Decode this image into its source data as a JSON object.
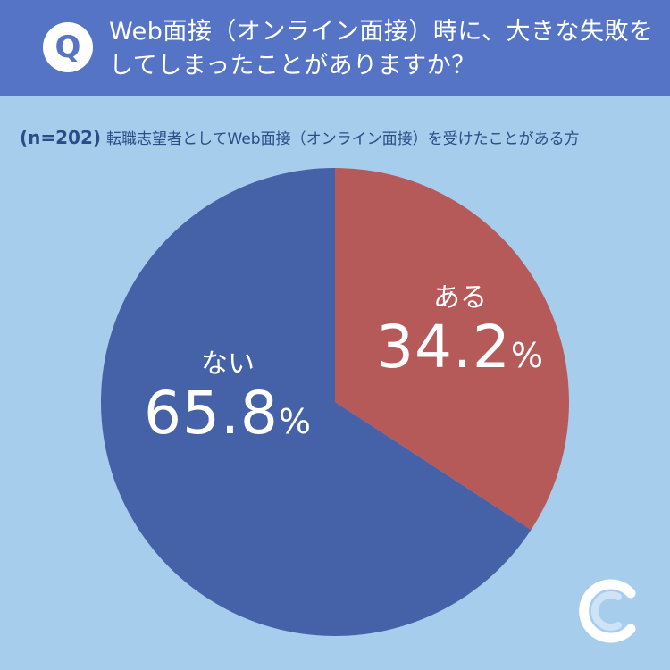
{
  "header": {
    "badge": "Q",
    "question_line1": "Web面接（オンライン面接）時に、大きな失敗を",
    "question_line2": "してしまったことがありますか？"
  },
  "subtitle": {
    "n": "(n=202)",
    "text": "転職志望者としてWeb面接（オンライン面接）を受けたことがある方"
  },
  "chart_data": {
    "type": "pie",
    "categories": [
      "ある",
      "ない"
    ],
    "values": [
      34.2,
      65.8
    ],
    "unit": "%",
    "colors": [
      "#b65a59",
      "#4561a7"
    ],
    "start": "12 o'clock, clockwise"
  },
  "labels": {
    "aru_category": "ある",
    "aru_value": "34.2",
    "nai_category": "ない",
    "nai_value": "65.8",
    "percent_sign": "%"
  },
  "colors": {
    "background": "#a7cdec",
    "header": "#5574c5",
    "slice_aru": "#b65a59",
    "slice_nai": "#4561a7",
    "subtitle_text": "#2b4c86"
  },
  "logo": {
    "icon": "crescent-c-logo-icon"
  }
}
